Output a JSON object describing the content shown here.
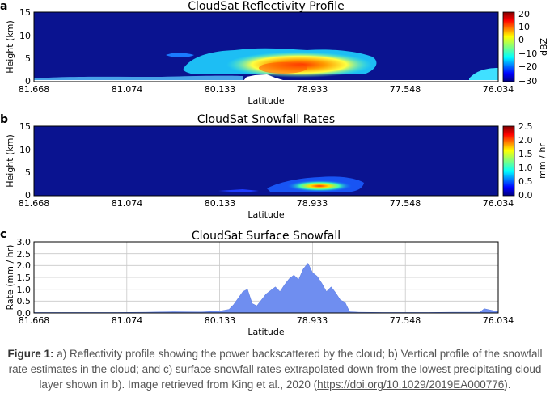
{
  "panels": [
    {
      "letter": "a",
      "title": "CloudSat Reflectivity Profile",
      "ylabel": "Height (km)",
      "xlabel": "Latitude",
      "yticks": [
        "15",
        "10",
        "5",
        "0"
      ],
      "xticks": [
        "81.668",
        "81.074",
        "80.133",
        "78.933",
        "77.548",
        "76.034"
      ],
      "colorbar": {
        "label": "dBZ",
        "ticks": [
          "20",
          "10",
          "0",
          "−10",
          "−20",
          "−30"
        ]
      }
    },
    {
      "letter": "b",
      "title": "CloudSat Snowfall Rates",
      "ylabel": "Height (km)",
      "xlabel": "Latitude",
      "yticks": [
        "15",
        "10",
        "5",
        "0"
      ],
      "xticks": [
        "81.668",
        "81.074",
        "80.133",
        "78.933",
        "77.548",
        "76.034"
      ],
      "colorbar": {
        "label": "mm / hr",
        "ticks": [
          "2.5",
          "2.0",
          "1.5",
          "1.0",
          "0.5",
          "0.0"
        ]
      }
    },
    {
      "letter": "c",
      "title": "CloudSat Surface Snowfall",
      "ylabel": "Rate (mm / hr)",
      "xlabel": "Latitude",
      "yticks": [
        "3.0",
        "2.5",
        "2.0",
        "1.5",
        "1.0",
        "0.5",
        "0.0"
      ],
      "xticks": [
        "81.668",
        "81.074",
        "80.133",
        "78.933",
        "77.548",
        "76.034"
      ]
    }
  ],
  "colors": {
    "area_fill": "#6f8ef0",
    "background_field": "#0a1390"
  },
  "chart_data": {
    "type": "area",
    "title": "CloudSat Surface Snowfall",
    "xlabel": "Latitude",
    "ylabel": "Rate (mm / hr)",
    "ylim": [
      0,
      3.0
    ],
    "x_tick_labels": [
      "81.668",
      "81.074",
      "80.133",
      "78.933",
      "77.548",
      "76.034"
    ],
    "x_position": [
      0.0,
      0.06,
      0.12,
      0.18,
      0.24,
      0.3,
      0.36,
      0.4,
      0.42,
      0.43,
      0.45,
      0.46,
      0.47,
      0.48,
      0.5,
      0.52,
      0.53,
      0.54,
      0.55,
      0.56,
      0.57,
      0.58,
      0.59,
      0.6,
      0.61,
      0.62,
      0.63,
      0.64,
      0.65,
      0.66,
      0.67,
      0.68,
      0.7,
      0.75,
      0.8,
      0.85,
      0.9,
      0.96,
      0.97,
      1.0
    ],
    "values": [
      0.02,
      0.02,
      0.02,
      0.02,
      0.03,
      0.05,
      0.04,
      0.08,
      0.15,
      0.35,
      0.9,
      1.0,
      0.4,
      0.3,
      0.8,
      1.1,
      0.9,
      1.2,
      1.45,
      1.6,
      1.4,
      1.85,
      2.1,
      1.7,
      1.55,
      1.25,
      0.9,
      1.1,
      0.85,
      0.55,
      0.45,
      0.05,
      0.03,
      0.02,
      0.02,
      0.02,
      0.03,
      0.03,
      0.18,
      0.05
    ]
  },
  "caption": {
    "lead": "Figure 1:",
    "text": " a) Reflectivity profile showing the power backscattered by the cloud; b) Vertical profile of the snowfall rate estimates in the cloud; and c) surface snowfall rates extrapolated down from the lowest precipitating cloud layer shown in b). Image retrieved from King et al., 2020 (",
    "link": "https://doi.org/10.1029/2019EA000776",
    "tail": ")."
  }
}
